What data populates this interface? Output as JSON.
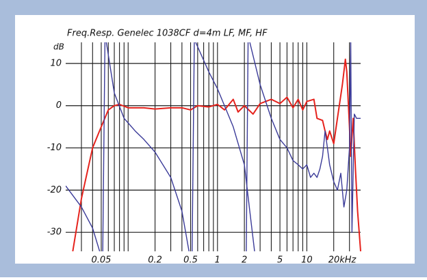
{
  "chart_data": {
    "type": "line",
    "title": "Freq.Resp. Genelec 1038CF d=4m LF, MF, HF",
    "ylabel": "dB",
    "log_x": true,
    "xlim": [
      0.02,
      40
    ],
    "ylim": [
      -34.5,
      15
    ],
    "xticks": [
      0.05,
      0.2,
      0.5,
      1,
      2,
      5,
      10,
      {
        "value": 20,
        "label": "20kHz"
      }
    ],
    "yticks": [
      10,
      0,
      -10,
      -20,
      -30
    ],
    "xgrid": [
      0.03,
      0.04,
      0.05,
      0.06,
      0.07,
      0.08,
      0.09,
      0.1,
      0.2,
      0.3,
      0.4,
      0.5,
      0.6,
      0.7,
      0.8,
      0.9,
      1,
      2,
      3,
      4,
      5,
      6,
      7,
      8,
      9,
      10,
      20,
      30
    ],
    "grid": true,
    "series": [
      {
        "color": "#e5221c",
        "x": [
          0.024,
          0.03,
          0.04,
          0.05,
          0.06,
          0.07,
          0.08,
          0.1,
          0.15,
          0.2,
          0.3,
          0.4,
          0.5,
          0.6,
          0.8,
          1,
          1.2,
          1.5,
          1.7,
          2,
          2.5,
          3,
          4,
          5,
          6,
          7,
          8,
          9,
          10,
          12,
          13,
          15,
          16,
          17,
          18,
          20,
          22,
          25,
          27,
          28,
          30,
          31,
          33,
          35,
          37,
          40
        ],
        "values": [
          -34.5,
          -22,
          -10,
          -5,
          -1,
          0,
          0.3,
          -0.5,
          -0.5,
          -0.8,
          -0.5,
          -0.5,
          -1,
          0,
          -0.3,
          0.3,
          -1,
          1.5,
          -1.5,
          0,
          -2,
          0.5,
          1.5,
          0.5,
          2,
          -0.5,
          1.5,
          -1,
          1,
          1.5,
          -3,
          -3.5,
          -6,
          -8,
          -6,
          -9,
          -3,
          5,
          11,
          8,
          -5,
          -12,
          -3,
          -15,
          -25,
          -34.5
        ]
      },
      {
        "color": "#3a3a98",
        "x": [
          0.02,
          0.03,
          0.04,
          0.048
        ],
        "values": [
          -19,
          -24,
          -29,
          -34.5
        ]
      },
      {
        "color": "#3a3a98",
        "x": [
          0.052,
          0.055
        ],
        "values": [
          -34.5,
          15
        ]
      },
      {
        "color": "#3a3a98",
        "x": [
          0.057,
          0.07,
          0.09,
          0.12,
          0.15,
          0.2,
          0.3,
          0.4,
          0.48
        ],
        "values": [
          15,
          3,
          -3,
          -6,
          -8,
          -11,
          -17,
          -25,
          -34.5
        ]
      },
      {
        "color": "#3a3a98",
        "x": [
          0.52,
          0.55
        ],
        "values": [
          -34.5,
          15
        ]
      },
      {
        "color": "#3a3a98",
        "x": [
          0.57,
          0.8,
          1,
          1.5,
          2,
          2.3,
          2.6
        ],
        "values": [
          15,
          8,
          4,
          -5,
          -14,
          -25,
          -34.5
        ]
      },
      {
        "color": "#3a3a98",
        "x": [
          2.1,
          2.2
        ],
        "values": [
          -34.5,
          15
        ]
      },
      {
        "color": "#3a3a98",
        "x": [
          2.3,
          3,
          4,
          5,
          6,
          7,
          8,
          9,
          10,
          11,
          12,
          13,
          14,
          15,
          16,
          17,
          18,
          20,
          22,
          24,
          26,
          28,
          30,
          31,
          32,
          34,
          36,
          40
        ],
        "values": [
          15,
          5,
          -3,
          -8,
          -10,
          -13,
          -14,
          -15,
          -14,
          -17,
          -16,
          -17,
          -15,
          -12,
          -6,
          -10,
          -14,
          -18,
          -20,
          -16,
          -24,
          -20,
          -10,
          15,
          -30,
          -2,
          -3,
          -3
        ]
      }
    ]
  }
}
